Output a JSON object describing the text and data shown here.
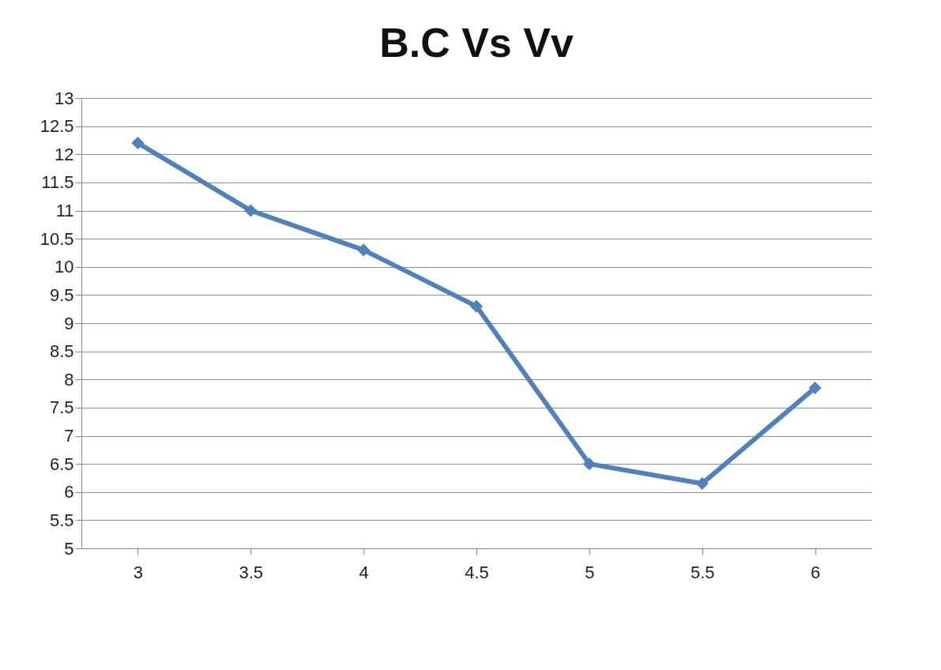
{
  "chart_data": {
    "type": "line",
    "title": "B.C Vs Vv",
    "categories": [
      "3",
      "3.5",
      "4",
      "4.5",
      "5",
      "5.5",
      "6"
    ],
    "series": [
      {
        "color": "#4f81bd",
        "values": [
          12.2,
          11.0,
          10.3,
          9.3,
          6.5,
          6.15,
          7.85
        ]
      }
    ],
    "ylim": [
      5,
      13
    ],
    "yticks": [
      5,
      5.5,
      6,
      6.5,
      7,
      7.5,
      8,
      8.5,
      9,
      9.5,
      10,
      10.5,
      11,
      11.5,
      12,
      12.5,
      13
    ],
    "grid": "y",
    "marker": "diamond",
    "line_style": "solid"
  }
}
